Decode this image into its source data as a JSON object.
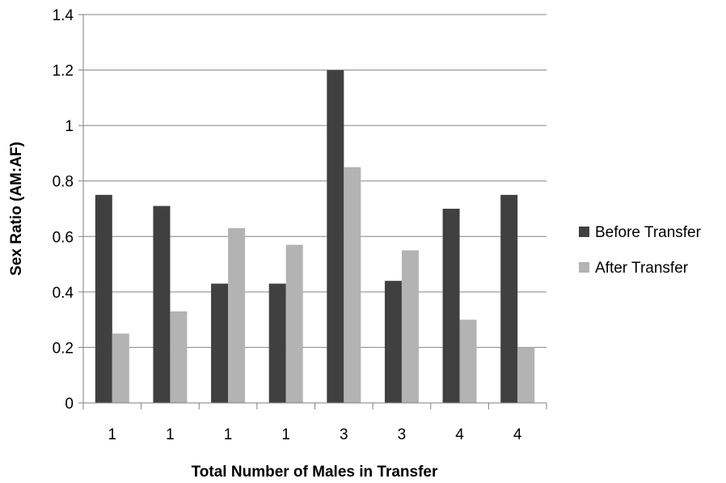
{
  "chart_data": {
    "type": "bar",
    "categories": [
      "1",
      "1",
      "1",
      "1",
      "3",
      "3",
      "4",
      "4"
    ],
    "series": [
      {
        "name": "Before Transfer",
        "color": "#404040",
        "values": [
          0.75,
          0.71,
          0.43,
          0.43,
          1.2,
          0.44,
          0.7,
          0.75
        ]
      },
      {
        "name": "After Transfer",
        "color": "#b3b3b3",
        "values": [
          0.25,
          0.33,
          0.63,
          0.57,
          0.85,
          0.55,
          0.3,
          0.2
        ]
      }
    ],
    "xlabel": "Total Number of Males in Transfer",
    "ylabel": "Sex Ratio (AM:AF)",
    "ylim": [
      0,
      1.4
    ],
    "yticks": [
      "0",
      "0.2",
      "0.4",
      "0.6",
      "0.8",
      "1",
      "1.2",
      "1.4"
    ],
    "grid": true,
    "legend_position": "right"
  }
}
